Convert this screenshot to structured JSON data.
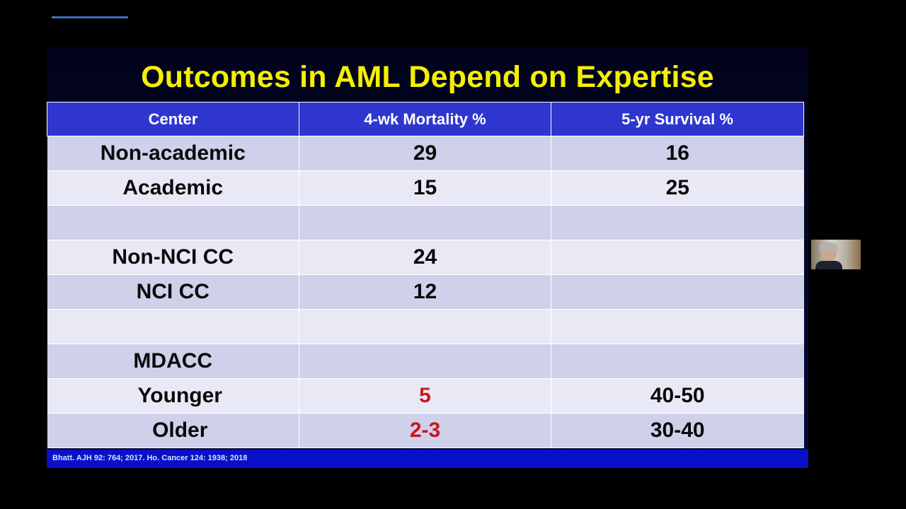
{
  "slide": {
    "title": "Outcomes in AML Depend on Expertise",
    "citation": "Bhatt. AJH 92: 764; 2017.  Ho. Cancer 124: 1938; 2018"
  },
  "table": {
    "headers": [
      "Center",
      "4-wk Mortality %",
      "5-yr Survival %"
    ],
    "rows": [
      {
        "center": "Non-academic",
        "mortality": "29",
        "survival": "16"
      },
      {
        "center": "Academic",
        "mortality": "15",
        "survival": "25"
      },
      {
        "center": "",
        "mortality": "",
        "survival": ""
      },
      {
        "center": "Non-NCI CC",
        "mortality": "24",
        "survival": ""
      },
      {
        "center": "NCI CC",
        "mortality": "12",
        "survival": ""
      },
      {
        "center": "",
        "mortality": "",
        "survival": ""
      },
      {
        "center": "MDACC",
        "mortality": "",
        "survival": ""
      },
      {
        "center": "Younger",
        "mortality": "5",
        "survival": "40-50"
      },
      {
        "center": "Older",
        "mortality": "2-3",
        "survival": "30-40"
      }
    ]
  },
  "colors": {
    "title": "#f4f000",
    "header_bg": "#2f36d0",
    "highlight": "#c8161e",
    "citation_bar": "#0a10c8"
  },
  "icons": {
    "presenter": "presenter-video-thumbnail"
  }
}
